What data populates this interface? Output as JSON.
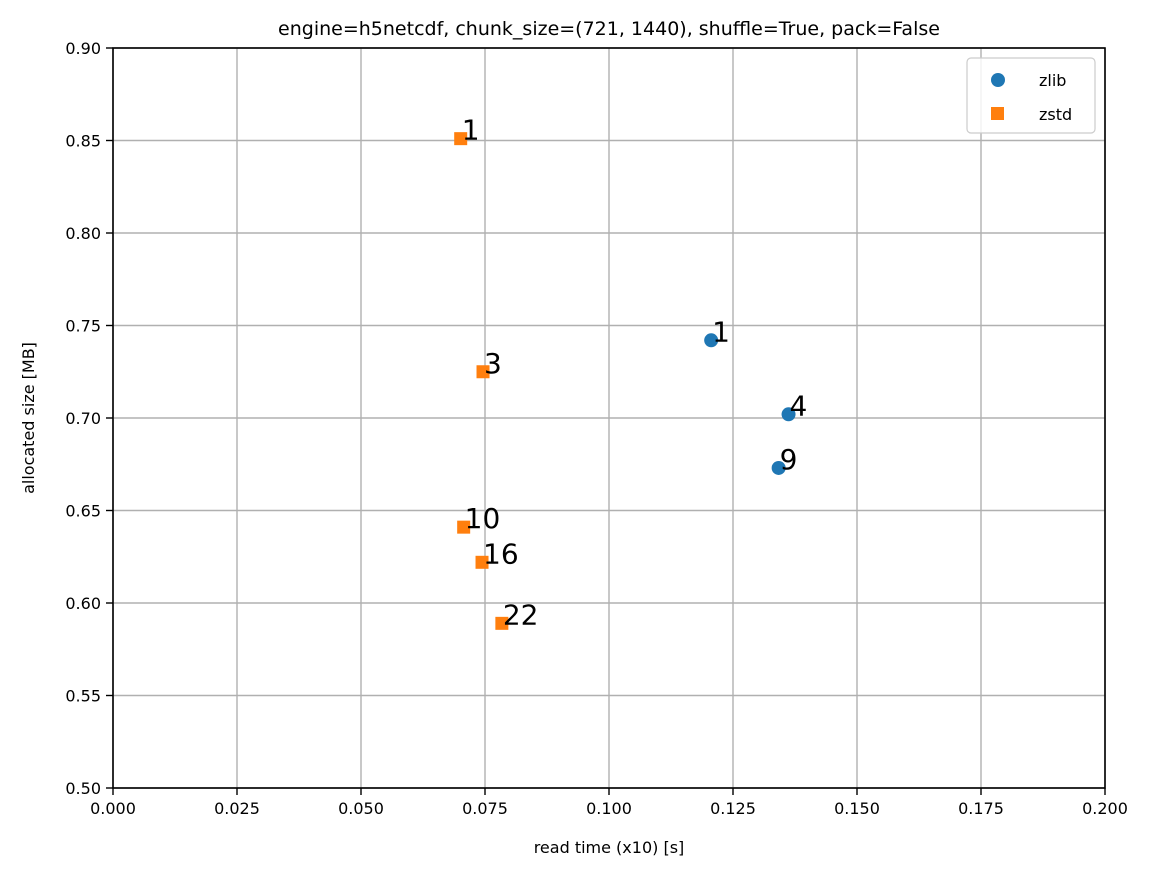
{
  "chart_data": {
    "type": "scatter",
    "title": "engine=h5netcdf, chunk_size=(721, 1440), shuffle=True, pack=False",
    "xlabel": "read time (x10) [s]",
    "ylabel": "allocated size [MB]",
    "xlim": [
      0.0,
      0.2
    ],
    "ylim": [
      0.5,
      0.9
    ],
    "x_ticks": [
      "0.000",
      "0.025",
      "0.050",
      "0.075",
      "0.100",
      "0.125",
      "0.150",
      "0.175",
      "0.200"
    ],
    "y_ticks": [
      "0.50",
      "0.55",
      "0.60",
      "0.65",
      "0.70",
      "0.75",
      "0.80",
      "0.85",
      "0.90"
    ],
    "grid": true,
    "legend_position": "top-right",
    "series": [
      {
        "name": "zlib",
        "marker": "circle",
        "color": "#1f77b4",
        "points": [
          {
            "x": 0.1206,
            "y": 0.742,
            "label": "1"
          },
          {
            "x": 0.1362,
            "y": 0.702,
            "label": "4"
          },
          {
            "x": 0.1342,
            "y": 0.673,
            "label": "9"
          }
        ]
      },
      {
        "name": "zstd",
        "marker": "square",
        "color": "#ff7f0e",
        "points": [
          {
            "x": 0.0701,
            "y": 0.851,
            "label": "1"
          },
          {
            "x": 0.0746,
            "y": 0.725,
            "label": "3"
          },
          {
            "x": 0.0707,
            "y": 0.641,
            "label": "10"
          },
          {
            "x": 0.0744,
            "y": 0.622,
            "label": "16"
          },
          {
            "x": 0.0784,
            "y": 0.589,
            "label": "22"
          }
        ]
      }
    ]
  }
}
